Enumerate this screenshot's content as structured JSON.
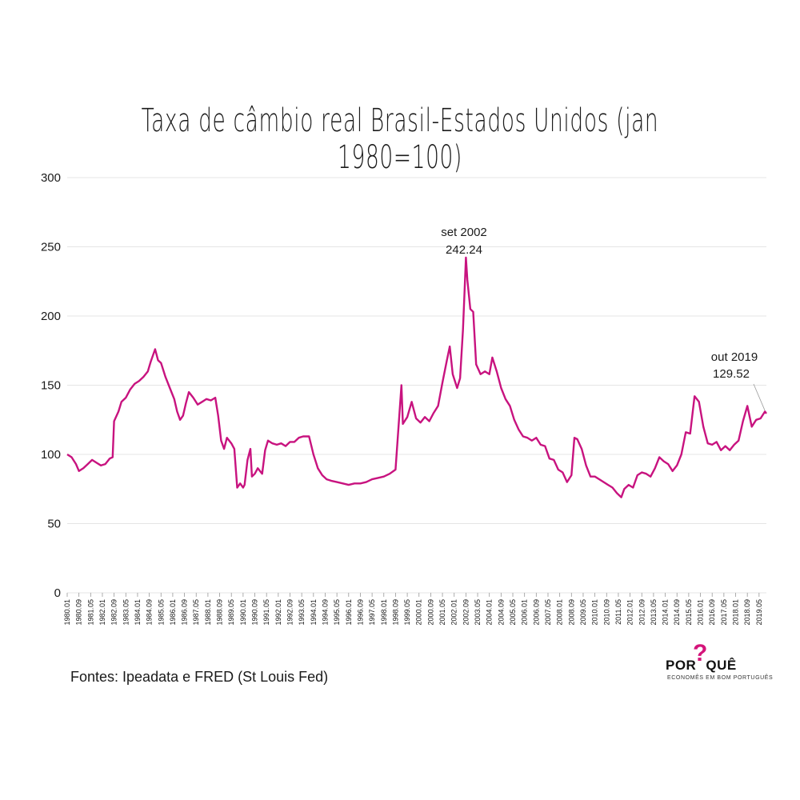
{
  "title": "Taxa de câmbio real Brasil-Estados Unidos (jan 1980=100)",
  "source": "Fontes: Ipeadata e FRED (St Louis Fed)",
  "logo": {
    "word_left": "POR",
    "word_right": "QUÊ",
    "mark": "?",
    "tagline": "ECONOMÊS EM BOM PORTUGUÊS"
  },
  "colors": {
    "line": "#c8137f",
    "grid": "#e4e4e4",
    "text": "#1a1a1a",
    "logo_accent": "#d4147a"
  },
  "chart_data": {
    "type": "line",
    "title": "Taxa de câmbio real Brasil-Estados Unidos (jan 1980=100)",
    "xlabel": "",
    "ylabel": "",
    "ylim": [
      0,
      300
    ],
    "yticks": [
      0,
      50,
      100,
      150,
      200,
      250,
      300
    ],
    "grid": true,
    "x_start": "1980.01",
    "x_end": "2019.10",
    "xtick_labels": [
      "1980.01",
      "1980.09",
      "1981.05",
      "1982.01",
      "1982.09",
      "1983.05",
      "1984.01",
      "1984.09",
      "1985.05",
      "1986.01",
      "1986.09",
      "1987.05",
      "1988.01",
      "1988.09",
      "1989.05",
      "1990.01",
      "1990.09",
      "1991.05",
      "1992.01",
      "1992.09",
      "1993.05",
      "1994.01",
      "1994.09",
      "1995.05",
      "1996.01",
      "1996.09",
      "1997.05",
      "1998.01",
      "1998.09",
      "1999.05",
      "2000.01",
      "2000.09",
      "2001.05",
      "2002.01",
      "2002.09",
      "2003.05",
      "2004.01",
      "2004.09",
      "2005.05",
      "2006.01",
      "2006.09",
      "2007.05",
      "2008.01",
      "2008.09",
      "2009.05",
      "2010.01",
      "2010.09",
      "2011.05",
      "2012.01",
      "2012.09",
      "2013.05",
      "2014.01",
      "2014.09",
      "2015.05",
      "2016.01",
      "2016.09",
      "2017.05",
      "2018.01",
      "2018.09",
      "2019.05"
    ],
    "series": [
      {
        "values": [
          [
            "1980.01",
            100
          ],
          [
            "1980.04",
            98
          ],
          [
            "1980.07",
            93
          ],
          [
            "1980.09",
            88
          ],
          [
            "1980.12",
            90
          ],
          [
            "1981.03",
            93
          ],
          [
            "1981.06",
            96
          ],
          [
            "1981.09",
            94
          ],
          [
            "1981.12",
            92
          ],
          [
            "1982.03",
            93
          ],
          [
            "1982.06",
            97
          ],
          [
            "1982.08",
            98
          ],
          [
            "1982.09",
            124
          ],
          [
            "1982.12",
            131
          ],
          [
            "1983.02",
            138
          ],
          [
            "1983.05",
            141
          ],
          [
            "1983.08",
            147
          ],
          [
            "1983.11",
            151
          ],
          [
            "1984.02",
            153
          ],
          [
            "1984.05",
            156
          ],
          [
            "1984.08",
            160
          ],
          [
            "1984.10",
            167
          ],
          [
            "1985.01",
            176
          ],
          [
            "1985.03",
            168
          ],
          [
            "1985.05",
            166
          ],
          [
            "1985.08",
            156
          ],
          [
            "1985.11",
            148
          ],
          [
            "1986.02",
            140
          ],
          [
            "1986.04",
            131
          ],
          [
            "1986.06",
            125
          ],
          [
            "1986.08",
            128
          ],
          [
            "1986.10",
            137
          ],
          [
            "1986.12",
            145
          ],
          [
            "1987.03",
            141
          ],
          [
            "1987.06",
            136
          ],
          [
            "1987.09",
            138
          ],
          [
            "1987.12",
            140
          ],
          [
            "1988.03",
            139
          ],
          [
            "1988.06",
            141
          ],
          [
            "1988.08",
            128
          ],
          [
            "1988.10",
            110
          ],
          [
            "1988.12",
            104
          ],
          [
            "1989.02",
            112
          ],
          [
            "1989.05",
            108
          ],
          [
            "1989.07",
            104
          ],
          [
            "1989.09",
            76
          ],
          [
            "1989.11",
            79
          ],
          [
            "1990.01",
            76
          ],
          [
            "1990.02",
            78
          ],
          [
            "1990.04",
            96
          ],
          [
            "1990.06",
            104
          ],
          [
            "1990.07",
            84
          ],
          [
            "1990.09",
            86
          ],
          [
            "1990.11",
            90
          ],
          [
            "1991.02",
            86
          ],
          [
            "1991.04",
            103
          ],
          [
            "1991.06",
            110
          ],
          [
            "1991.09",
            108
          ],
          [
            "1991.12",
            107
          ],
          [
            "1992.03",
            108
          ],
          [
            "1992.06",
            106
          ],
          [
            "1992.09",
            109
          ],
          [
            "1992.12",
            109
          ],
          [
            "1993.03",
            112
          ],
          [
            "1993.06",
            113
          ],
          [
            "1993.10",
            113
          ],
          [
            "1994.01",
            100
          ],
          [
            "1994.04",
            90
          ],
          [
            "1994.07",
            85
          ],
          [
            "1994.10",
            82
          ],
          [
            "1995.01",
            81
          ],
          [
            "1995.05",
            80
          ],
          [
            "1995.09",
            79
          ],
          [
            "1996.01",
            78
          ],
          [
            "1996.05",
            79
          ],
          [
            "1996.09",
            79
          ],
          [
            "1997.01",
            80
          ],
          [
            "1997.05",
            82
          ],
          [
            "1997.09",
            83
          ],
          [
            "1998.01",
            84
          ],
          [
            "1998.05",
            86
          ],
          [
            "1998.09",
            89
          ],
          [
            "1999.01",
            150
          ],
          [
            "1999.02",
            122
          ],
          [
            "1999.05",
            127
          ],
          [
            "1999.08",
            138
          ],
          [
            "1999.11",
            126
          ],
          [
            "2000.02",
            123
          ],
          [
            "2000.05",
            127
          ],
          [
            "2000.08",
            124
          ],
          [
            "2000.11",
            130
          ],
          [
            "2001.02",
            135
          ],
          [
            "2001.05",
            152
          ],
          [
            "2001.08",
            168
          ],
          [
            "2001.10",
            178
          ],
          [
            "2001.12",
            158
          ],
          [
            "2002.03",
            148
          ],
          [
            "2002.05",
            155
          ],
          [
            "2002.07",
            190
          ],
          [
            "2002.08",
            215
          ],
          [
            "2002.09",
            242.24
          ],
          [
            "2002.10",
            226
          ],
          [
            "2002.12",
            205
          ],
          [
            "2003.02",
            203
          ],
          [
            "2003.04",
            165
          ],
          [
            "2003.07",
            158
          ],
          [
            "2003.10",
            160
          ],
          [
            "2004.01",
            158
          ],
          [
            "2004.03",
            170
          ],
          [
            "2004.06",
            160
          ],
          [
            "2004.09",
            148
          ],
          [
            "2004.12",
            140
          ],
          [
            "2005.03",
            135
          ],
          [
            "2005.06",
            125
          ],
          [
            "2005.09",
            118
          ],
          [
            "2005.12",
            113
          ],
          [
            "2006.03",
            112
          ],
          [
            "2006.06",
            110
          ],
          [
            "2006.09",
            112
          ],
          [
            "2006.12",
            107
          ],
          [
            "2007.03",
            106
          ],
          [
            "2007.06",
            97
          ],
          [
            "2007.09",
            96
          ],
          [
            "2007.12",
            89
          ],
          [
            "2008.03",
            87
          ],
          [
            "2008.06",
            80
          ],
          [
            "2008.09",
            85
          ],
          [
            "2008.11",
            112
          ],
          [
            "2009.01",
            111
          ],
          [
            "2009.04",
            104
          ],
          [
            "2009.07",
            92
          ],
          [
            "2009.10",
            84
          ],
          [
            "2010.01",
            84
          ],
          [
            "2010.04",
            82
          ],
          [
            "2010.07",
            80
          ],
          [
            "2010.10",
            78
          ],
          [
            "2011.01",
            76
          ],
          [
            "2011.04",
            72
          ],
          [
            "2011.07",
            69
          ],
          [
            "2011.09",
            75
          ],
          [
            "2011.12",
            78
          ],
          [
            "2012.03",
            76
          ],
          [
            "2012.06",
            85
          ],
          [
            "2012.09",
            87
          ],
          [
            "2012.12",
            86
          ],
          [
            "2013.03",
            84
          ],
          [
            "2013.06",
            90
          ],
          [
            "2013.09",
            98
          ],
          [
            "2013.12",
            95
          ],
          [
            "2014.03",
            93
          ],
          [
            "2014.06",
            88
          ],
          [
            "2014.09",
            92
          ],
          [
            "2014.12",
            100
          ],
          [
            "2015.03",
            116
          ],
          [
            "2015.06",
            115
          ],
          [
            "2015.09",
            142
          ],
          [
            "2015.12",
            138
          ],
          [
            "2016.03",
            120
          ],
          [
            "2016.06",
            108
          ],
          [
            "2016.09",
            107
          ],
          [
            "2016.12",
            109
          ],
          [
            "2017.03",
            103
          ],
          [
            "2017.06",
            106
          ],
          [
            "2017.09",
            103
          ],
          [
            "2017.12",
            107
          ],
          [
            "2018.03",
            110
          ],
          [
            "2018.06",
            124
          ],
          [
            "2018.09",
            135
          ],
          [
            "2018.12",
            120
          ],
          [
            "2019.03",
            125
          ],
          [
            "2019.06",
            126
          ],
          [
            "2019.09",
            131
          ],
          [
            "2019.10",
            129.52
          ]
        ]
      }
    ],
    "annotations": [
      {
        "x": "2002.09",
        "label_line1": "set 2002",
        "label_line2": "242.24"
      },
      {
        "x": "2019.10",
        "label_line1": "out 2019",
        "label_line2": "129.52"
      }
    ]
  }
}
